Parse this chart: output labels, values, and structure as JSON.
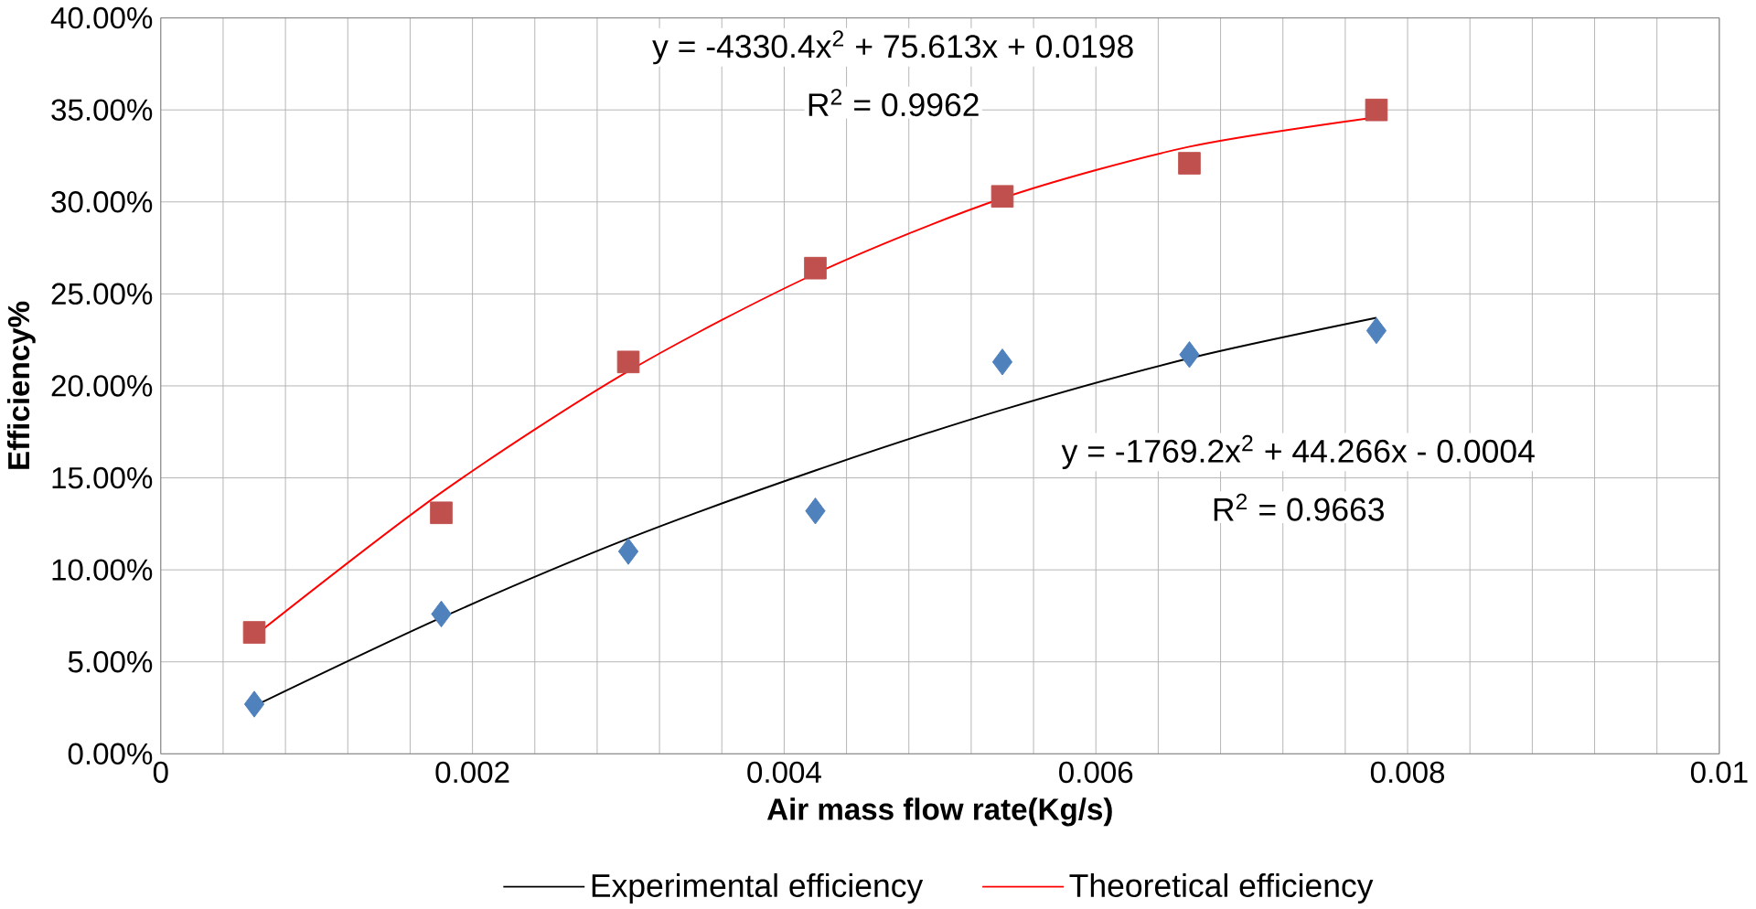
{
  "chart_data": {
    "type": "scatter",
    "xlabel": "Air mass flow rate(Kg/s)",
    "ylabel": "Efficiency%",
    "xlim": [
      0,
      0.01
    ],
    "xticks": [
      0,
      0.002,
      0.004,
      0.006,
      0.008,
      0.01
    ],
    "ylim": [
      0,
      0.4
    ],
    "yticks": [
      {
        "value": 0,
        "label": "0.00%"
      },
      {
        "value": 0.05,
        "label": "5.00%"
      },
      {
        "value": 0.1,
        "label": "10.00%"
      },
      {
        "value": 0.15,
        "label": "15.00%"
      },
      {
        "value": 0.2,
        "label": "20.00%"
      },
      {
        "value": 0.25,
        "label": "25.00%"
      },
      {
        "value": 0.3,
        "label": "30.00%"
      },
      {
        "value": 0.35,
        "label": "35.00%"
      },
      {
        "value": 0.4,
        "label": "40.00%"
      }
    ],
    "grid": true,
    "legend": "bottom",
    "x": [
      0.0006,
      0.0018,
      0.003,
      0.0042,
      0.0054,
      0.0066,
      0.0078
    ],
    "series": [
      {
        "marker": "diamond",
        "color": "#4f81bd",
        "values": [
          0.027,
          0.076,
          0.11,
          0.132,
          0.213,
          0.217,
          0.23
        ]
      },
      {
        "marker": "square",
        "color": "#c0504d",
        "values": [
          0.066,
          0.131,
          0.213,
          0.264,
          0.303,
          0.321,
          0.35
        ]
      },
      {
        "type": "line",
        "name": "Experimental efficiency",
        "color": "#000000",
        "x": [
          0.0006,
          0.0018,
          0.003,
          0.0042,
          0.0054,
          0.0066,
          0.0078
        ],
        "values": [
          0.026,
          0.074,
          0.117,
          0.154,
          0.187,
          0.215,
          0.237
        ]
      },
      {
        "type": "line",
        "name": "Theoretical efficiency",
        "color": "#ff0000",
        "x": [
          0.0006,
          0.0018,
          0.003,
          0.0042,
          0.0054,
          0.0066,
          0.0078
        ],
        "values": [
          0.064,
          0.142,
          0.208,
          0.261,
          0.302,
          0.33,
          0.346
        ]
      }
    ],
    "annotations": [
      "y = -4330.4x$^{2}$ + 75.613x + 0.0198",
      "R$^{2}$ = 0.9962",
      "y = -1769.2x$^{2}$ + 44.266x - 0.0004",
      "R$^{2}$ = 0.9663"
    ]
  }
}
